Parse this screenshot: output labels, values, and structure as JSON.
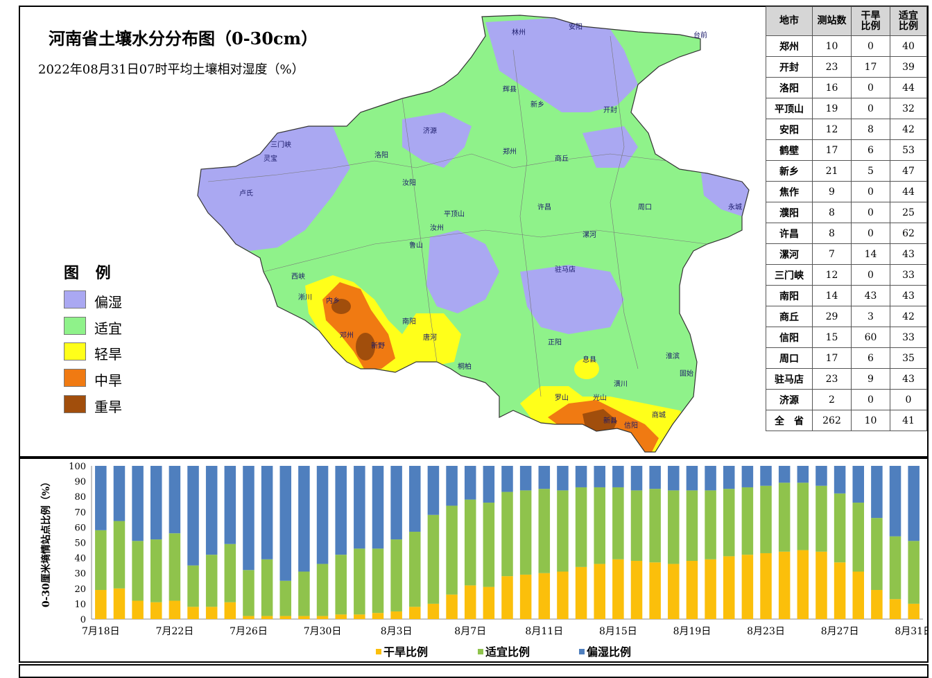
{
  "page": {
    "title": "河南省土壤水分分布图（0-30cm）",
    "subtitle": "2022年08月31日07时平均土壤相对湿度（%）"
  },
  "legend": {
    "title": "图 例",
    "items": [
      {
        "label": "偏湿",
        "color": "#aaa8f2"
      },
      {
        "label": "适宜",
        "color": "#8ff28a"
      },
      {
        "label": "轻旱",
        "color": "#ffff1a"
      },
      {
        "label": "中旱",
        "color": "#f07a12"
      },
      {
        "label": "重旱",
        "color": "#a14e0c"
      }
    ]
  },
  "map_labels": [
    "林州",
    "安阳",
    "台前",
    "辉县",
    "新乡",
    "开封",
    "郑州",
    "洛阳",
    "鲁山",
    "南阳",
    "内乡",
    "邓州",
    "新野",
    "唐河",
    "桐柏",
    "信阳",
    "新县",
    "商城",
    "固始",
    "周口",
    "驻马店",
    "平顶山",
    "许昌",
    "漯河",
    "三门峡",
    "灵宝",
    "卢氏",
    "西峡",
    "淅川",
    "汝阳",
    "汝州",
    "商丘",
    "永城",
    "正阳",
    "潢川",
    "息县",
    "罗山",
    "光山",
    "淮滨",
    "济源"
  ],
  "city_table": {
    "headers": [
      "地市",
      "测站数",
      "干旱\n比例",
      "适宜\n比例"
    ],
    "rows": [
      [
        "郑州",
        "10",
        "0",
        "40"
      ],
      [
        "开封",
        "23",
        "17",
        "39"
      ],
      [
        "洛阳",
        "16",
        "0",
        "44"
      ],
      [
        "平顶山",
        "19",
        "0",
        "32"
      ],
      [
        "安阳",
        "12",
        "8",
        "42"
      ],
      [
        "鹤壁",
        "17",
        "6",
        "53"
      ],
      [
        "新乡",
        "21",
        "5",
        "47"
      ],
      [
        "焦作",
        "9",
        "0",
        "44"
      ],
      [
        "濮阳",
        "8",
        "0",
        "25"
      ],
      [
        "许昌",
        "8",
        "0",
        "62"
      ],
      [
        "漯河",
        "7",
        "14",
        "43"
      ],
      [
        "三门峡",
        "12",
        "0",
        "33"
      ],
      [
        "南阳",
        "14",
        "43",
        "43"
      ],
      [
        "商丘",
        "29",
        "3",
        "42"
      ],
      [
        "信阳",
        "15",
        "60",
        "33"
      ],
      [
        "周口",
        "17",
        "6",
        "35"
      ],
      [
        "驻马店",
        "23",
        "9",
        "43"
      ],
      [
        "济源",
        "2",
        "0",
        "0"
      ],
      [
        "全　省",
        "262",
        "10",
        "41"
      ]
    ]
  },
  "chart_data": {
    "type": "bar",
    "stacked": true,
    "ylabel": "0-30厘米墒情站点比例（%）",
    "ylim": [
      0,
      100
    ],
    "yticks": [
      0,
      10,
      20,
      30,
      40,
      50,
      60,
      70,
      80,
      90,
      100
    ],
    "x_tick_labels": [
      "7月18日",
      "7月22日",
      "7月26日",
      "7月30日",
      "8月3日",
      "8月7日",
      "8月11日",
      "8月15日",
      "8月19日",
      "8月23日",
      "8月27日",
      "8月31日"
    ],
    "x_tick_every": 4,
    "legend_position": "bottom",
    "series": [
      {
        "name": "干旱比例",
        "color": "#fbbf0b",
        "values": [
          19,
          20,
          12,
          11,
          12,
          8,
          8,
          11,
          2,
          2,
          2,
          2,
          2,
          3,
          3,
          4,
          5,
          8,
          10,
          16,
          22,
          21,
          28,
          29,
          30,
          31,
          34,
          36,
          39,
          38,
          37,
          36,
          38,
          39,
          41,
          42,
          43,
          44,
          45,
          44,
          37,
          31,
          19,
          13,
          10
        ]
      },
      {
        "name": "适宜比例",
        "color": "#8fc34c",
        "values": [
          39,
          44,
          39,
          41,
          44,
          27,
          34,
          38,
          30,
          37,
          23,
          29,
          34,
          39,
          43,
          42,
          47,
          49,
          58,
          58,
          56,
          55,
          55,
          55,
          55,
          53,
          52,
          50,
          47,
          46,
          48,
          48,
          46,
          45,
          44,
          44,
          44,
          45,
          44,
          43,
          45,
          45,
          47,
          41,
          41
        ]
      },
      {
        "name": "偏湿比例",
        "color": "#4f7fbe",
        "values": [
          42,
          36,
          49,
          48,
          44,
          65,
          58,
          51,
          68,
          61,
          75,
          69,
          64,
          58,
          54,
          54,
          48,
          43,
          32,
          26,
          22,
          24,
          17,
          16,
          15,
          16,
          14,
          14,
          14,
          16,
          15,
          16,
          16,
          16,
          15,
          14,
          13,
          11,
          11,
          13,
          18,
          24,
          34,
          46,
          49
        ]
      }
    ]
  }
}
